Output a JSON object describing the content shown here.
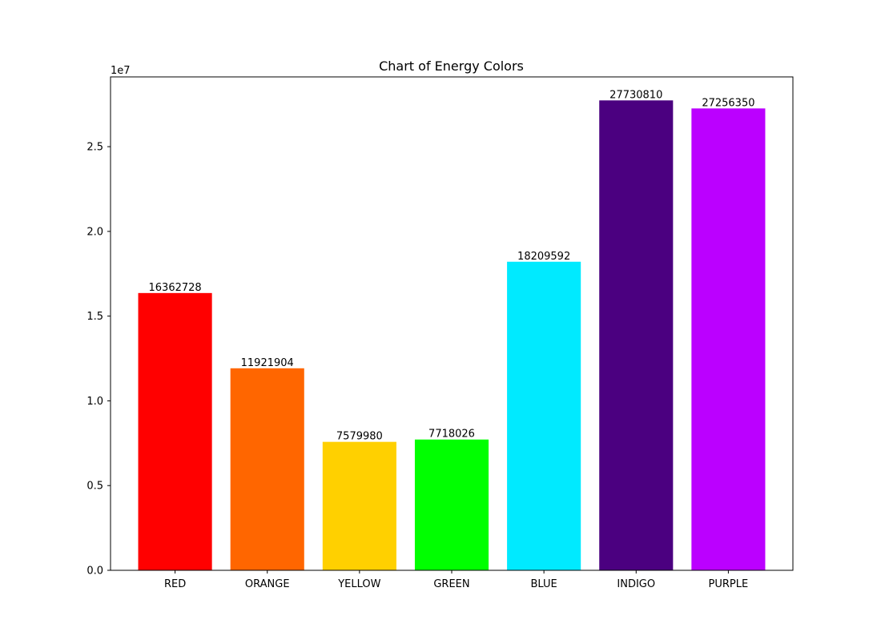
{
  "chart_data": {
    "type": "bar",
    "title": "Chart of Energy Colors",
    "xlabel": "",
    "ylabel": "",
    "y_offset_label": "1e7",
    "y_scale": 10000000,
    "categories": [
      "RED",
      "ORANGE",
      "YELLOW",
      "GREEN",
      "BLUE",
      "INDIGO",
      "PURPLE"
    ],
    "values": [
      16362728,
      11921904,
      7579980,
      7718026,
      18209592,
      27730810,
      27256350
    ],
    "value_labels": [
      "16362728",
      "11921904",
      "7579980",
      "7718026",
      "18209592",
      "27730810",
      "27256350"
    ],
    "colors": [
      "#ff0000",
      "#ff6600",
      "#ffd000",
      "#00ff00",
      "#00eaff",
      "#4b0080",
      "#bb00ff"
    ],
    "yticks": [
      0,
      5000000,
      10000000,
      15000000,
      20000000,
      25000000
    ],
    "ytick_labels": [
      "0.0",
      "0.5",
      "1.0",
      "1.5",
      "2.0",
      "2.5"
    ],
    "ylim": [
      0,
      29117350
    ],
    "grid": false,
    "legend": "none"
  }
}
